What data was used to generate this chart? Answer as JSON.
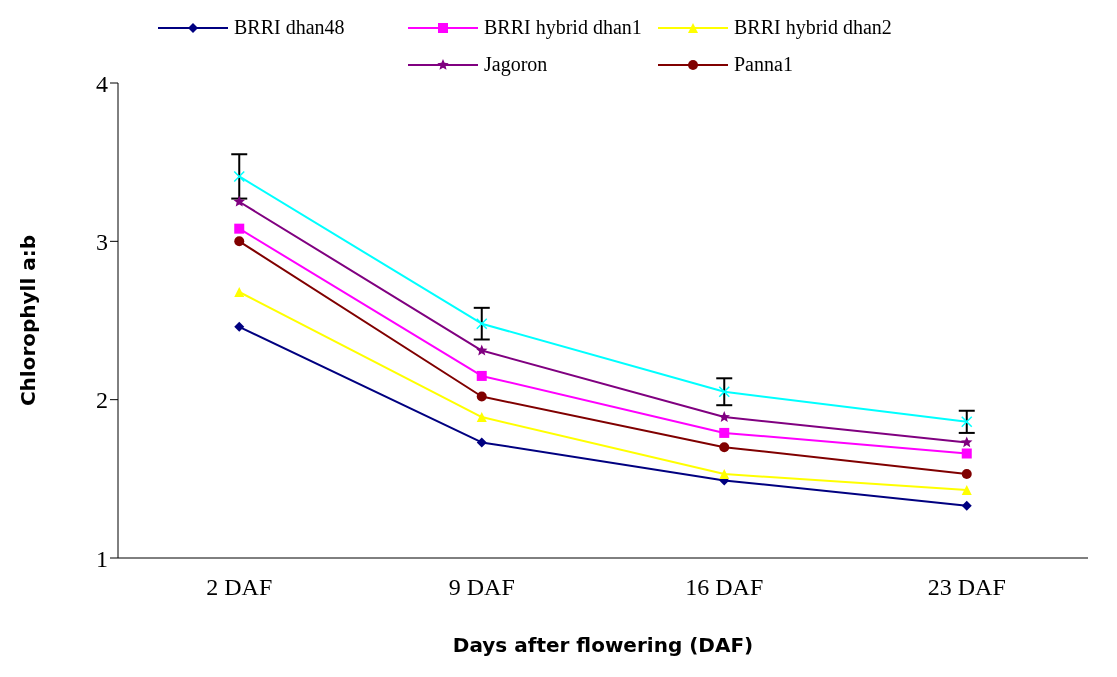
{
  "chart_data": {
    "type": "line",
    "xlabel": "Days after flowering (DAF)",
    "ylabel": "Chlorophyll a:b",
    "categories": [
      "2 DAF",
      "9 DAF",
      "16 DAF",
      "23 DAF"
    ],
    "ylim": [
      1,
      4
    ],
    "yticks": [
      1,
      2,
      3,
      4
    ],
    "legend": "top",
    "series": [
      {
        "name": "BRRI dhan48",
        "color": "#000080",
        "marker": "diamond",
        "values": [
          2.46,
          1.73,
          1.49,
          1.33
        ]
      },
      {
        "name": "BRRI hybrid dhan1",
        "color": "#ff00ff",
        "marker": "square",
        "values": [
          3.08,
          2.15,
          1.79,
          1.66
        ]
      },
      {
        "name": "BRRI hybrid dhan2",
        "color": "#ffff00",
        "marker": "triangle",
        "values": [
          2.68,
          1.89,
          1.53,
          1.43
        ]
      },
      {
        "color": "#00ffff",
        "marker": "cross",
        "values": [
          3.41,
          2.48,
          2.05,
          1.86
        ],
        "errors": [
          0.14,
          0.1,
          0.085,
          0.07
        ]
      },
      {
        "name": "Jagoron",
        "color": "#800080",
        "marker": "star",
        "values": [
          3.25,
          2.31,
          1.89,
          1.73
        ]
      },
      {
        "name": "Panna1",
        "color": "#800000",
        "marker": "circle",
        "values": [
          3.0,
          2.02,
          1.7,
          1.53
        ]
      }
    ]
  }
}
